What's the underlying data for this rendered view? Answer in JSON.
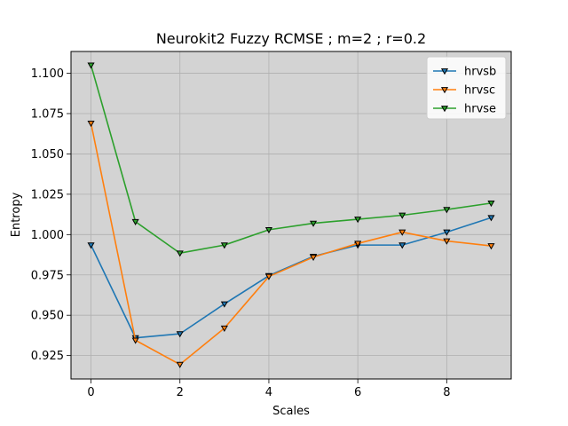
{
  "chart_data": {
    "type": "line",
    "title": "Neurokit2 Fuzzy RCMSE ; m=2 ; r=0.2",
    "xlabel": "Scales",
    "ylabel": "Entropy",
    "xlim": [
      -0.45,
      9.45
    ],
    "ylim": [
      0.9105,
      1.1135
    ],
    "xticks": [
      0,
      2,
      4,
      6,
      8
    ],
    "yticks": [
      0.925,
      0.95,
      0.975,
      1.0,
      1.025,
      1.05,
      1.075,
      1.1
    ],
    "ytick_labels": [
      "0.925",
      "0.950",
      "0.975",
      "1.000",
      "1.025",
      "1.050",
      "1.075",
      "1.100"
    ],
    "grid": true,
    "background": "#d3d3d3",
    "legend_position": "top-right",
    "x": [
      0,
      1,
      2,
      3,
      4,
      5,
      6,
      7,
      8,
      9
    ],
    "series": [
      {
        "name": "hrvsb",
        "color": "#1f77b4",
        "values": [
          0.9935,
          0.936,
          0.9385,
          0.957,
          0.9745,
          0.9865,
          0.9935,
          0.9935,
          1.0015,
          1.0105
        ]
      },
      {
        "name": "hrvsc",
        "color": "#ff7f0e",
        "values": [
          1.069,
          0.9345,
          0.9195,
          0.942,
          0.974,
          0.986,
          0.9945,
          1.0015,
          0.996,
          0.993
        ]
      },
      {
        "name": "hrvse",
        "color": "#2ca02c",
        "values": [
          1.105,
          1.008,
          0.9885,
          0.9935,
          1.003,
          1.007,
          1.0095,
          1.012,
          1.0155,
          1.0195
        ]
      }
    ],
    "marker": "triangle-down"
  }
}
